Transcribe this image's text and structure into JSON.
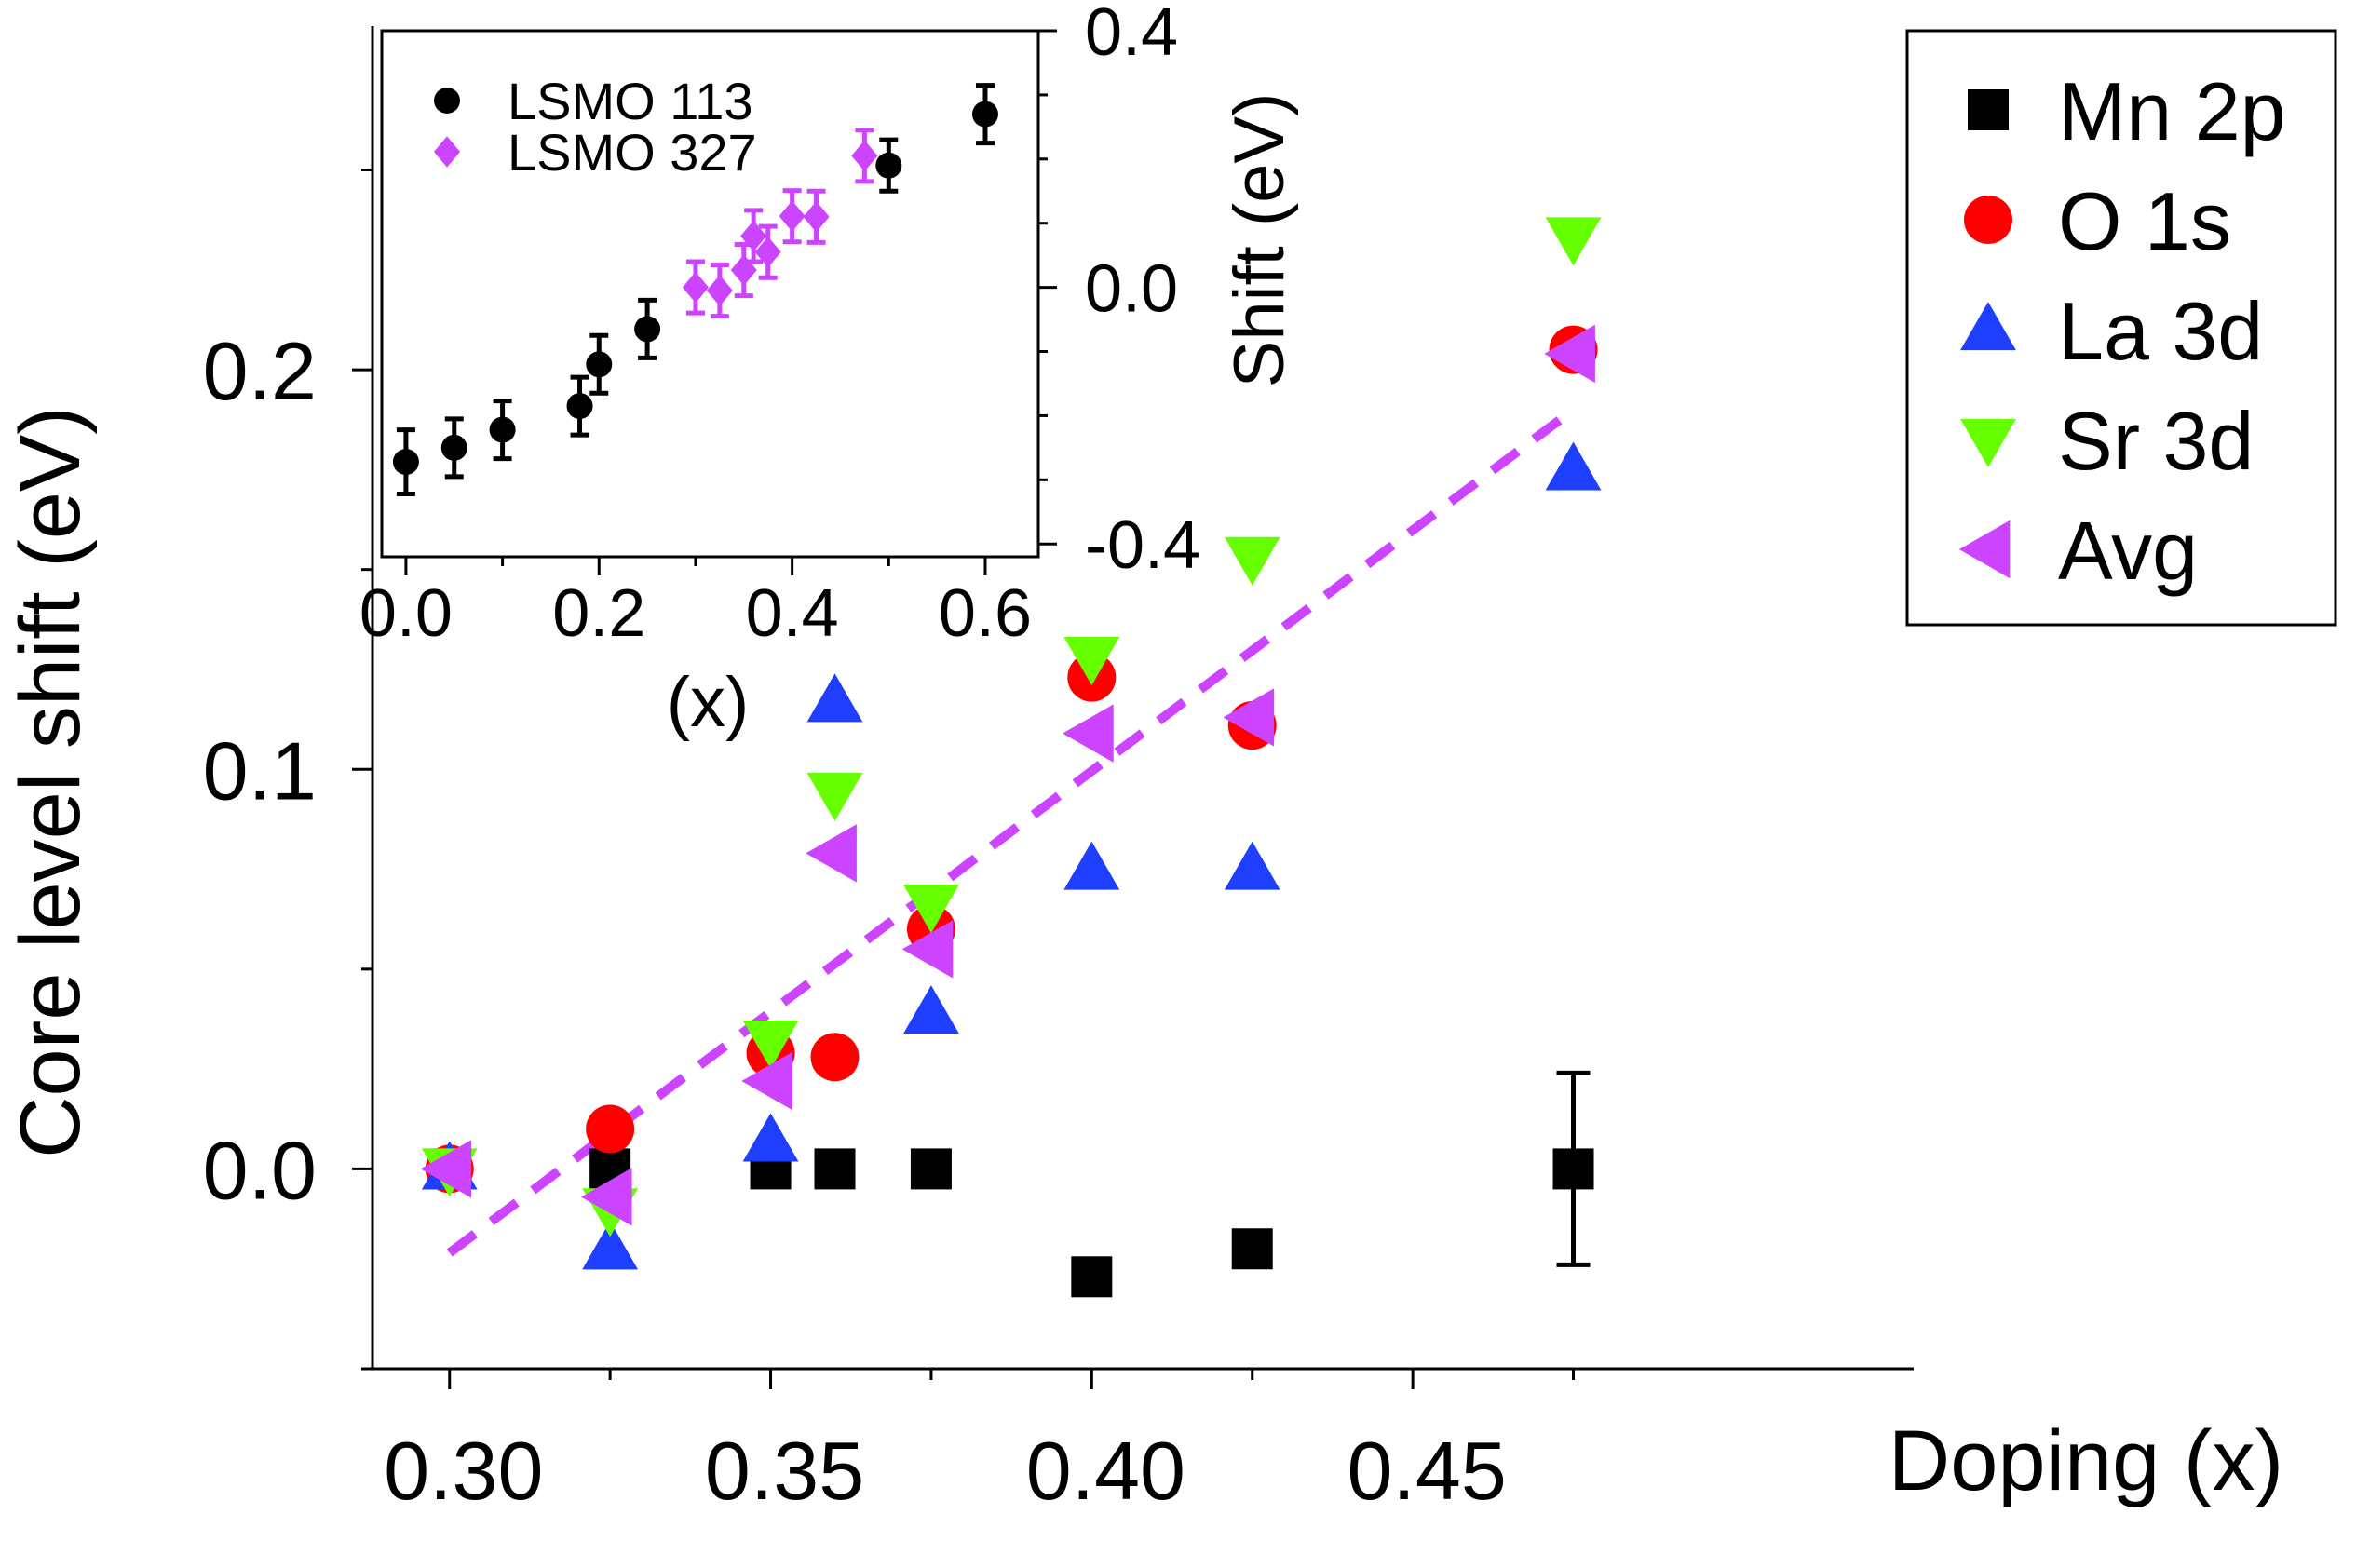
{
  "chart_data": [
    {
      "type": "scatter",
      "id": "main",
      "title": "",
      "xlabel": "Doping (x)",
      "ylabel": "Core level shift (eV)",
      "xlim": [
        0.288,
        0.528
      ],
      "ylim": [
        -0.05,
        0.286
      ],
      "xticks": [
        0.3,
        0.35,
        0.4,
        0.45
      ],
      "xtick_labels": [
        "0.30",
        "0.35",
        "0.40",
        "0.45"
      ],
      "yticks": [
        0.0,
        0.1,
        0.2
      ],
      "ytick_labels": [
        "0.0",
        "0.1",
        "0.2"
      ],
      "legend_position": "top-right",
      "series": [
        {
          "name": "Mn 2p",
          "marker": "square",
          "color": "#000000",
          "x": [
            0.3,
            0.325,
            0.35,
            0.36,
            0.375,
            0.4,
            0.425,
            0.475
          ],
          "y": [
            0.0,
            0.0,
            0.0,
            0.0,
            0.0,
            -0.027,
            -0.02,
            0.0
          ],
          "error_bar": {
            "x": 0.475,
            "y": 0.0,
            "err": 0.024
          }
        },
        {
          "name": "O 1s",
          "marker": "circle",
          "color": "#ff0000",
          "x": [
            0.3,
            0.325,
            0.35,
            0.36,
            0.375,
            0.4,
            0.425,
            0.475
          ],
          "y": [
            0.0,
            0.01,
            0.029,
            0.028,
            0.06,
            0.123,
            0.111,
            0.205
          ]
        },
        {
          "name": "La 3d",
          "marker": "triangle-up",
          "color": "#1f3fff",
          "x": [
            0.3,
            0.325,
            0.35,
            0.36,
            0.375,
            0.4,
            0.425,
            0.475
          ],
          "y": [
            0.0,
            -0.02,
            0.007,
            0.117,
            0.039,
            0.075,
            0.075,
            0.175
          ]
        },
        {
          "name": "Sr 3d",
          "marker": "triangle-down",
          "color": "#66ff00",
          "x": [
            0.3,
            0.325,
            0.35,
            0.36,
            0.375,
            0.4,
            0.425,
            0.475
          ],
          "y": [
            0.0,
            -0.01,
            0.032,
            0.094,
            0.066,
            0.128,
            0.153,
            0.233
          ]
        },
        {
          "name": "Avg",
          "marker": "triangle-left",
          "color": "#cc44ff",
          "x": [
            0.3,
            0.325,
            0.35,
            0.36,
            0.375,
            0.4,
            0.425,
            0.475
          ],
          "y": [
            0.0,
            -0.007,
            0.022,
            0.079,
            0.055,
            0.109,
            0.113,
            0.204
          ]
        }
      ],
      "fit_line": {
        "name": "linear fit",
        "color": "#cc44ff",
        "style": "dashed",
        "x": [
          0.3,
          0.475
        ],
        "y": [
          -0.021,
          0.19
        ]
      }
    },
    {
      "type": "scatter",
      "id": "inset",
      "title": "",
      "xlabel": "(x)",
      "ylabel": "Shift (eV)",
      "xlim": [
        -0.025,
        0.655
      ],
      "ylim": [
        -0.42,
        0.4
      ],
      "xticks": [
        0.0,
        0.2,
        0.4,
        0.6
      ],
      "xtick_labels": [
        "0.0",
        "0.2",
        "0.4",
        "0.6"
      ],
      "yticks": [
        -0.4,
        0.0,
        0.4
      ],
      "ytick_labels": [
        "-0.4",
        "0.0",
        "0.4"
      ],
      "ylabel_side": "right",
      "legend_position": "top-left",
      "series": [
        {
          "name": "LSMO 113",
          "marker": "circle",
          "color": "#000000",
          "x": [
            0.0,
            0.05,
            0.1,
            0.18,
            0.2,
            0.25,
            0.5,
            0.6
          ],
          "y": [
            -0.272,
            -0.25,
            -0.222,
            -0.185,
            -0.12,
            -0.065,
            0.19,
            0.27
          ],
          "err": [
            0.05,
            0.045,
            0.045,
            0.045,
            0.045,
            0.045,
            0.04,
            0.045
          ]
        },
        {
          "name": "LSMO 327",
          "marker": "diamond",
          "color": "#cc44ff",
          "x": [
            0.3,
            0.325,
            0.35,
            0.36,
            0.375,
            0.4,
            0.425,
            0.475
          ],
          "y": [
            0.0,
            -0.005,
            0.027,
            0.08,
            0.055,
            0.111,
            0.11,
            0.205
          ],
          "err": [
            0.04,
            0.04,
            0.04,
            0.04,
            0.04,
            0.04,
            0.04,
            0.04
          ]
        }
      ]
    }
  ]
}
